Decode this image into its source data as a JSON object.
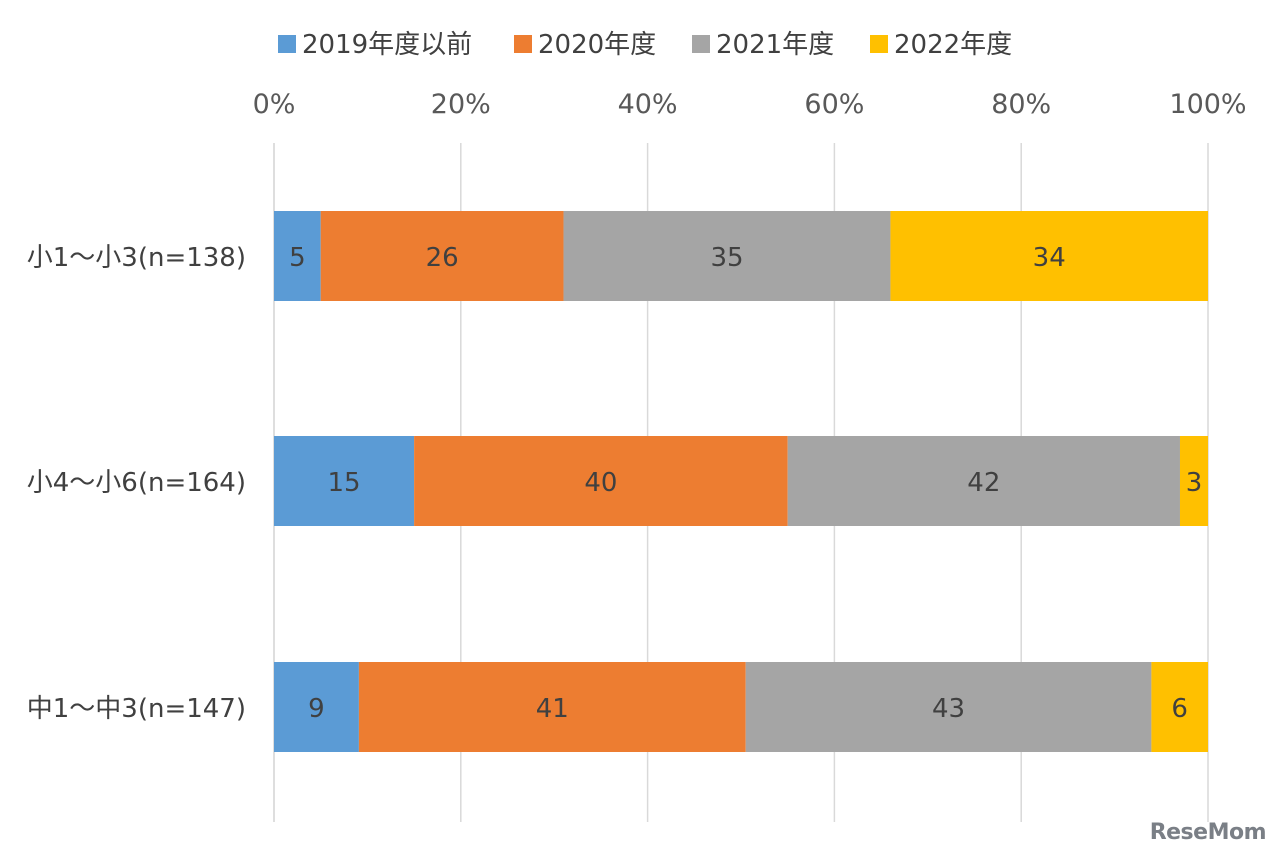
{
  "chart_data": {
    "type": "bar",
    "orientation": "horizontal",
    "stacked": "percent",
    "categories": [
      "小1～小3(n=138)",
      "小4～小6(n=164)",
      "中1～中3(n=147)"
    ],
    "series": [
      {
        "name": "2019年度以前",
        "color": "#5B9BD5",
        "values": [
          5,
          15,
          9
        ]
      },
      {
        "name": "2020年度",
        "color": "#ED7D31",
        "values": [
          26,
          40,
          41
        ]
      },
      {
        "name": "2021年度",
        "color": "#A5A5A5",
        "values": [
          35,
          42,
          43
        ]
      },
      {
        "name": "2022年度",
        "color": "#FFC000",
        "values": [
          34,
          3,
          6
        ]
      }
    ],
    "xticks": [
      "0%",
      "20%",
      "40%",
      "60%",
      "80%",
      "100%"
    ],
    "xlim": [
      0,
      100
    ],
    "grid": true,
    "legend_position": "top"
  },
  "watermark": "ReseMom"
}
